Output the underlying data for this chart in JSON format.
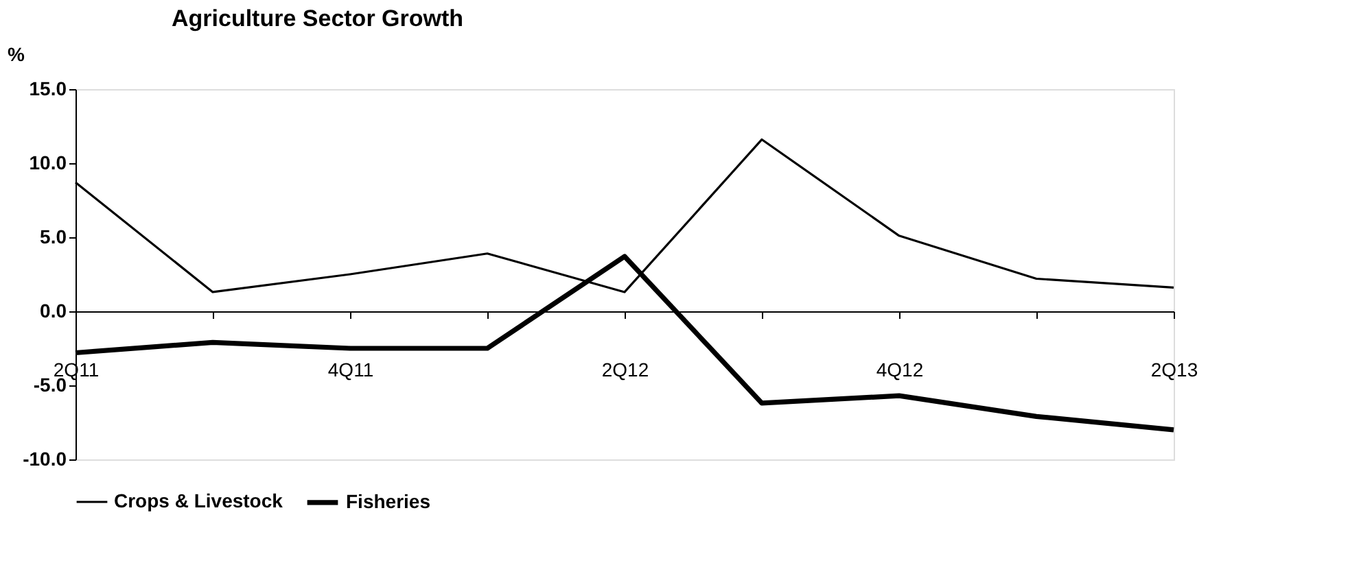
{
  "chart_data": {
    "type": "line",
    "title": "Agriculture Sector Growth",
    "ylabel": "%",
    "categories": [
      "2Q11",
      null,
      "4Q11",
      null,
      "2Q12",
      null,
      "4Q12",
      null,
      "2Q13"
    ],
    "series": [
      {
        "name": "Crops & Livestock",
        "color": "#000000",
        "values": [
          8.7,
          1.3,
          2.5,
          3.9,
          1.3,
          11.6,
          5.1,
          2.2,
          1.6
        ]
      },
      {
        "name": "Fisheries",
        "color": "#000000",
        "values": [
          -2.8,
          -2.1,
          -2.5,
          -2.5,
          3.7,
          -6.2,
          -5.7,
          -7.1,
          -8.0
        ]
      }
    ],
    "ylim": [
      -10,
      15
    ],
    "yticks": [
      {
        "value": -10,
        "label": "-10.0"
      },
      {
        "value": -5,
        "label": "-5.0"
      },
      {
        "value": 0,
        "label": "0.0"
      },
      {
        "value": 5,
        "label": "5.0"
      },
      {
        "value": 10,
        "label": "10.0"
      },
      {
        "value": 15,
        "label": "15.0"
      }
    ],
    "grid": false,
    "legend": "bottom",
    "marker": "none",
    "line_style": "solid"
  }
}
